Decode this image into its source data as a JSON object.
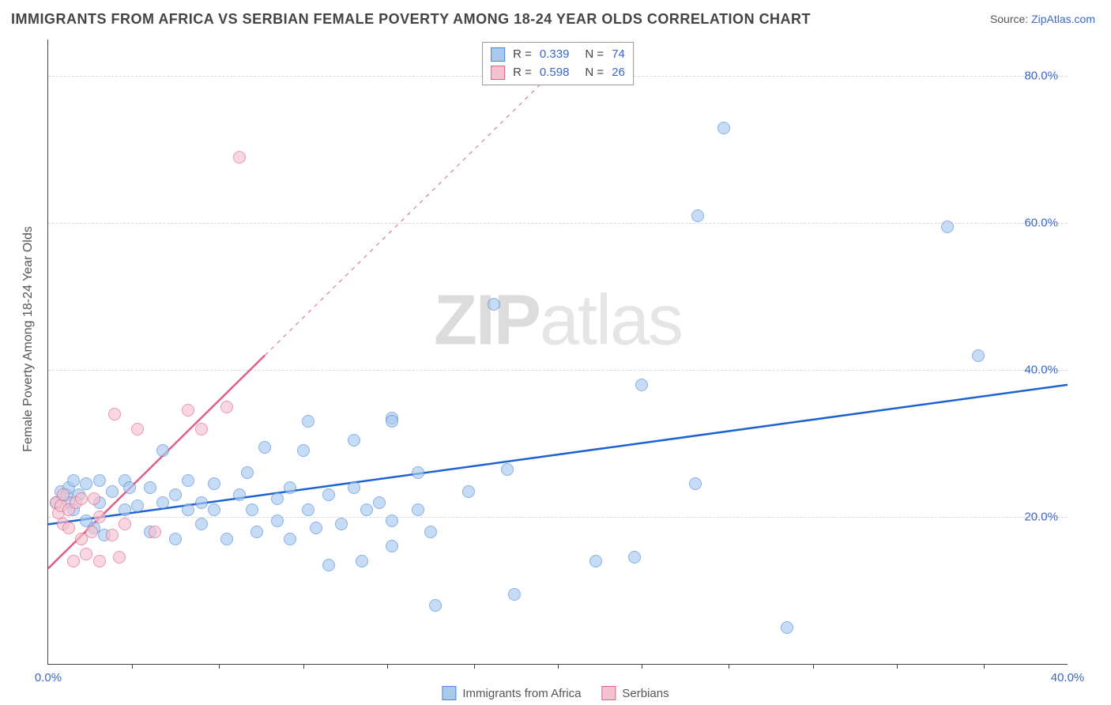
{
  "title": "IMMIGRANTS FROM AFRICA VS SERBIAN FEMALE POVERTY AMONG 18-24 YEAR OLDS CORRELATION CHART",
  "source_label": "Source:",
  "source_value": "ZipAtlas.com",
  "watermark": {
    "prefix": "ZIP",
    "suffix": "atlas"
  },
  "chart": {
    "type": "scatter",
    "background_color": "#ffffff",
    "grid_color": "#d9d9d9",
    "x_axis": {
      "min": 0.0,
      "max": 40.0,
      "ticks": [
        0.0,
        40.0
      ],
      "tick_labels": [
        "0.0%",
        "40.0%"
      ],
      "minor_ticks": [
        3.3,
        6.7,
        10.0,
        13.3,
        16.7,
        20.0,
        23.3,
        26.7,
        30.0,
        33.3,
        36.7
      ]
    },
    "y_axis": {
      "label": "Female Poverty Among 18-24 Year Olds",
      "min": 0.0,
      "max": 85.0,
      "ticks": [
        20.0,
        40.0,
        60.0,
        80.0
      ],
      "tick_labels": [
        "20.0%",
        "40.0%",
        "60.0%",
        "80.0%"
      ]
    },
    "legend_top": {
      "rows": [
        {
          "swatch_fill": "#a9c9ef",
          "swatch_border": "#4d86d6",
          "r_label": "R =",
          "r_value": "0.339",
          "n_label": "N =",
          "n_value": "74"
        },
        {
          "swatch_fill": "#f6c2d0",
          "swatch_border": "#e05f87",
          "r_label": "R =",
          "r_value": "0.598",
          "n_label": "N =",
          "n_value": "26"
        }
      ],
      "value_color": "#3b66c4",
      "text_color": "#444444"
    },
    "legend_bottom": {
      "items": [
        {
          "swatch_fill": "#a9c9ef",
          "swatch_border": "#4d86d6",
          "label": "Immigrants from Africa"
        },
        {
          "swatch_fill": "#f6c2d0",
          "swatch_border": "#e05f87",
          "label": "Serbians"
        }
      ]
    },
    "series": [
      {
        "name": "Immigrants from Africa",
        "marker_fill": "#a9c9ef",
        "marker_border": "#4d86d6",
        "marker_opacity": 0.65,
        "marker_radius": 7,
        "trend": {
          "color": "#1d62d1",
          "width": 2.5,
          "dash_after_x": 40,
          "y_at_xmin": 19.0,
          "y_at_xmax": 38.0
        },
        "points": [
          [
            0.3,
            22.0
          ],
          [
            0.5,
            23.5
          ],
          [
            0.7,
            23.0
          ],
          [
            0.8,
            22.0
          ],
          [
            0.8,
            24.0
          ],
          [
            1.0,
            25.0
          ],
          [
            1.0,
            21.0
          ],
          [
            1.2,
            23.0
          ],
          [
            1.5,
            24.5
          ],
          [
            1.5,
            19.5
          ],
          [
            1.8,
            18.5
          ],
          [
            2.0,
            25.0
          ],
          [
            2.0,
            22.0
          ],
          [
            2.2,
            17.5
          ],
          [
            2.5,
            23.5
          ],
          [
            3.0,
            21.0
          ],
          [
            3.0,
            25.0
          ],
          [
            3.2,
            24.0
          ],
          [
            3.5,
            21.5
          ],
          [
            4.0,
            18.0
          ],
          [
            4.0,
            24.0
          ],
          [
            4.5,
            22.0
          ],
          [
            4.5,
            29.0
          ],
          [
            5.0,
            23.0
          ],
          [
            5.0,
            17.0
          ],
          [
            5.5,
            21.0
          ],
          [
            5.5,
            25.0
          ],
          [
            6.0,
            22.0
          ],
          [
            6.0,
            19.0
          ],
          [
            6.5,
            21.0
          ],
          [
            6.5,
            24.5
          ],
          [
            7.0,
            17.0
          ],
          [
            7.5,
            23.0
          ],
          [
            7.8,
            26.0
          ],
          [
            8.0,
            21.0
          ],
          [
            8.2,
            18.0
          ],
          [
            8.5,
            29.5
          ],
          [
            9.0,
            22.5
          ],
          [
            9.0,
            19.5
          ],
          [
            9.5,
            24.0
          ],
          [
            9.5,
            17.0
          ],
          [
            10.0,
            29.0
          ],
          [
            10.2,
            21.0
          ],
          [
            10.2,
            33.0
          ],
          [
            10.5,
            18.5
          ],
          [
            11.0,
            23.0
          ],
          [
            11.0,
            13.5
          ],
          [
            11.5,
            19.0
          ],
          [
            12.0,
            30.5
          ],
          [
            12.0,
            24.0
          ],
          [
            12.3,
            14.0
          ],
          [
            12.5,
            21.0
          ],
          [
            13.0,
            22.0
          ],
          [
            13.5,
            33.5
          ],
          [
            13.5,
            33.0
          ],
          [
            13.5,
            19.5
          ],
          [
            13.5,
            16.0
          ],
          [
            14.5,
            21.0
          ],
          [
            14.5,
            26.0
          ],
          [
            15.0,
            18.0
          ],
          [
            15.2,
            8.0
          ],
          [
            16.5,
            23.5
          ],
          [
            17.5,
            49.0
          ],
          [
            18.0,
            26.5
          ],
          [
            18.3,
            9.5
          ],
          [
            21.5,
            14.0
          ],
          [
            23.0,
            14.5
          ],
          [
            23.3,
            38.0
          ],
          [
            25.4,
            24.5
          ],
          [
            25.5,
            61.0
          ],
          [
            26.5,
            73.0
          ],
          [
            29.0,
            5.0
          ],
          [
            35.3,
            59.5
          ],
          [
            36.5,
            42.0
          ]
        ]
      },
      {
        "name": "Serbians",
        "marker_fill": "#f6c2d0",
        "marker_border": "#e05f87",
        "marker_opacity": 0.65,
        "marker_radius": 7,
        "trend": {
          "color": "#e05f87",
          "width": 2.5,
          "dash_after_x": 8.5,
          "y_at_xmin": 13.0,
          "y_at_x8_5": 42.0,
          "y_at_xmax_proj": 150.0
        },
        "points": [
          [
            0.3,
            22.0
          ],
          [
            0.4,
            20.5
          ],
          [
            0.5,
            21.5
          ],
          [
            0.6,
            23.0
          ],
          [
            0.6,
            19.0
          ],
          [
            0.8,
            18.5
          ],
          [
            0.8,
            21.0
          ],
          [
            1.0,
            14.0
          ],
          [
            1.1,
            22.0
          ],
          [
            1.3,
            17.0
          ],
          [
            1.3,
            22.5
          ],
          [
            1.5,
            15.0
          ],
          [
            1.7,
            18.0
          ],
          [
            1.8,
            22.5
          ],
          [
            2.0,
            14.0
          ],
          [
            2.0,
            20.0
          ],
          [
            2.5,
            17.5
          ],
          [
            2.6,
            34.0
          ],
          [
            2.8,
            14.5
          ],
          [
            3.0,
            19.0
          ],
          [
            3.5,
            32.0
          ],
          [
            4.2,
            18.0
          ],
          [
            5.5,
            34.5
          ],
          [
            6.0,
            32.0
          ],
          [
            7.0,
            35.0
          ],
          [
            7.5,
            69.0
          ]
        ]
      }
    ]
  }
}
